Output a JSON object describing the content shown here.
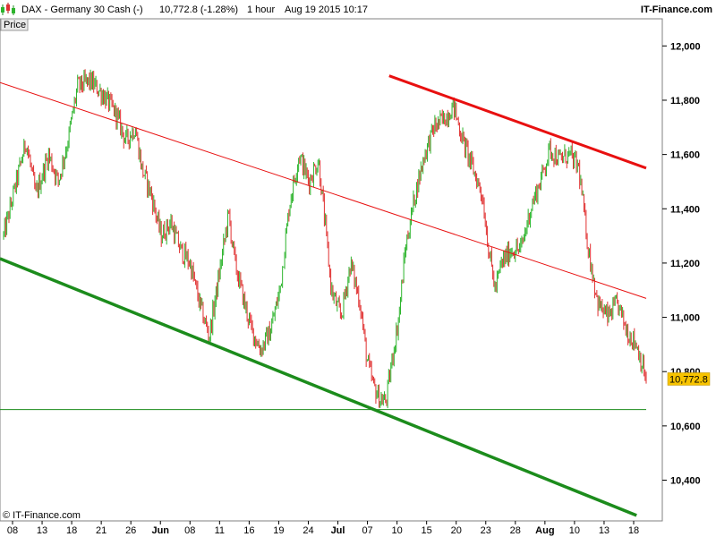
{
  "header": {
    "title": "DAX - Germany 30 Cash (-)",
    "quote": "10,772.8 (-1.28%)",
    "timeframe": "1 hour",
    "datetime": "Aug 19 2015 10:17",
    "brand": "IT-Finance.com"
  },
  "panel_label": "Price",
  "copyright": "© IT-Finance.com",
  "colors": {
    "up_candle": "#2db42d",
    "down_candle": "#e03030",
    "resistance": "#e81010",
    "support": "#1c8c1c",
    "last_price_bg": "#f7c300"
  },
  "chart_data": {
    "type": "candlestick",
    "ylim": [
      10250,
      12100
    ],
    "yticks": [
      10400,
      10600,
      10800,
      11000,
      11200,
      11400,
      11600,
      11800,
      12000
    ],
    "ytick_labels": [
      "10,400",
      "10,600",
      "10,800",
      "11,000",
      "11,200",
      "11,400",
      "11,600",
      "11,800",
      "12,000"
    ],
    "xticks": [
      {
        "label": "08",
        "month": false
      },
      {
        "label": "13",
        "month": false
      },
      {
        "label": "18",
        "month": false
      },
      {
        "label": "21",
        "month": false
      },
      {
        "label": "26",
        "month": false
      },
      {
        "label": "Jun",
        "month": true
      },
      {
        "label": "08",
        "month": false
      },
      {
        "label": "11",
        "month": false
      },
      {
        "label": "16",
        "month": false
      },
      {
        "label": "19",
        "month": false
      },
      {
        "label": "24",
        "month": false
      },
      {
        "label": "Jul",
        "month": true
      },
      {
        "label": "07",
        "month": false
      },
      {
        "label": "10",
        "month": false
      },
      {
        "label": "15",
        "month": false
      },
      {
        "label": "20",
        "month": false
      },
      {
        "label": "23",
        "month": false
      },
      {
        "label": "28",
        "month": false
      },
      {
        "label": "Aug",
        "month": true
      },
      {
        "label": "10",
        "month": false
      },
      {
        "label": "13",
        "month": false
      },
      {
        "label": "18",
        "month": false
      }
    ],
    "last_price": 10772.8,
    "last_price_label": "10,772.8",
    "path": [
      {
        "t": 0.0,
        "v": 11300
      },
      {
        "t": 0.02,
        "v": 11500
      },
      {
        "t": 0.035,
        "v": 11650
      },
      {
        "t": 0.05,
        "v": 11450
      },
      {
        "t": 0.07,
        "v": 11600
      },
      {
        "t": 0.085,
        "v": 11500
      },
      {
        "t": 0.1,
        "v": 11650
      },
      {
        "t": 0.115,
        "v": 11850
      },
      {
        "t": 0.135,
        "v": 11870
      },
      {
        "t": 0.155,
        "v": 11820
      },
      {
        "t": 0.175,
        "v": 11750
      },
      {
        "t": 0.19,
        "v": 11650
      },
      {
        "t": 0.205,
        "v": 11700
      },
      {
        "t": 0.215,
        "v": 11550
      },
      {
        "t": 0.23,
        "v": 11450
      },
      {
        "t": 0.245,
        "v": 11300
      },
      {
        "t": 0.26,
        "v": 11350
      },
      {
        "t": 0.275,
        "v": 11250
      },
      {
        "t": 0.29,
        "v": 11200
      },
      {
        "t": 0.305,
        "v": 11050
      },
      {
        "t": 0.32,
        "v": 10930
      },
      {
        "t": 0.335,
        "v": 11150
      },
      {
        "t": 0.35,
        "v": 11380
      },
      {
        "t": 0.36,
        "v": 11200
      },
      {
        "t": 0.375,
        "v": 11050
      },
      {
        "t": 0.385,
        "v": 10960
      },
      {
        "t": 0.4,
        "v": 10880
      },
      {
        "t": 0.415,
        "v": 10950
      },
      {
        "t": 0.43,
        "v": 11100
      },
      {
        "t": 0.445,
        "v": 11420
      },
      {
        "t": 0.46,
        "v": 11600
      },
      {
        "t": 0.475,
        "v": 11500
      },
      {
        "t": 0.49,
        "v": 11580
      },
      {
        "t": 0.5,
        "v": 11350
      },
      {
        "t": 0.51,
        "v": 11100
      },
      {
        "t": 0.525,
        "v": 11000
      },
      {
        "t": 0.54,
        "v": 11200
      },
      {
        "t": 0.555,
        "v": 11050
      },
      {
        "t": 0.565,
        "v": 10850
      },
      {
        "t": 0.575,
        "v": 10750
      },
      {
        "t": 0.585,
        "v": 10700
      },
      {
        "t": 0.595,
        "v": 10690
      },
      {
        "t": 0.605,
        "v": 10850
      },
      {
        "t": 0.615,
        "v": 11000
      },
      {
        "t": 0.625,
        "v": 11250
      },
      {
        "t": 0.64,
        "v": 11450
      },
      {
        "t": 0.655,
        "v": 11600
      },
      {
        "t": 0.67,
        "v": 11700
      },
      {
        "t": 0.685,
        "v": 11730
      },
      {
        "t": 0.7,
        "v": 11780
      },
      {
        "t": 0.715,
        "v": 11650
      },
      {
        "t": 0.73,
        "v": 11550
      },
      {
        "t": 0.745,
        "v": 11450
      },
      {
        "t": 0.755,
        "v": 11250
      },
      {
        "t": 0.765,
        "v": 11100
      },
      {
        "t": 0.775,
        "v": 11200
      },
      {
        "t": 0.79,
        "v": 11250
      },
      {
        "t": 0.805,
        "v": 11250
      },
      {
        "t": 0.82,
        "v": 11400
      },
      {
        "t": 0.835,
        "v": 11500
      },
      {
        "t": 0.85,
        "v": 11620
      },
      {
        "t": 0.865,
        "v": 11580
      },
      {
        "t": 0.88,
        "v": 11600
      },
      {
        "t": 0.895,
        "v": 11550
      },
      {
        "t": 0.91,
        "v": 11250
      },
      {
        "t": 0.925,
        "v": 11050
      },
      {
        "t": 0.94,
        "v": 11000
      },
      {
        "t": 0.955,
        "v": 11050
      },
      {
        "t": 0.97,
        "v": 10950
      },
      {
        "t": 0.985,
        "v": 10900
      },
      {
        "t": 1.0,
        "v": 10772.8
      }
    ],
    "trendlines": [
      {
        "style": "resistance-thin",
        "from": {
          "t": -0.1,
          "v": 11940
        },
        "to": {
          "t": 1.0,
          "v": 11070
        }
      },
      {
        "style": "resistance-thick",
        "from": {
          "t": 0.6,
          "v": 11890
        },
        "to": {
          "t": 1.0,
          "v": 11550
        }
      },
      {
        "style": "support-thick",
        "from": {
          "t": -0.02,
          "v": 11230
        },
        "to": {
          "t": 0.985,
          "v": 10270
        }
      },
      {
        "style": "support-thin",
        "from": {
          "t": -0.02,
          "v": 10660
        },
        "to": {
          "t": 1.0,
          "v": 10660
        }
      }
    ]
  }
}
